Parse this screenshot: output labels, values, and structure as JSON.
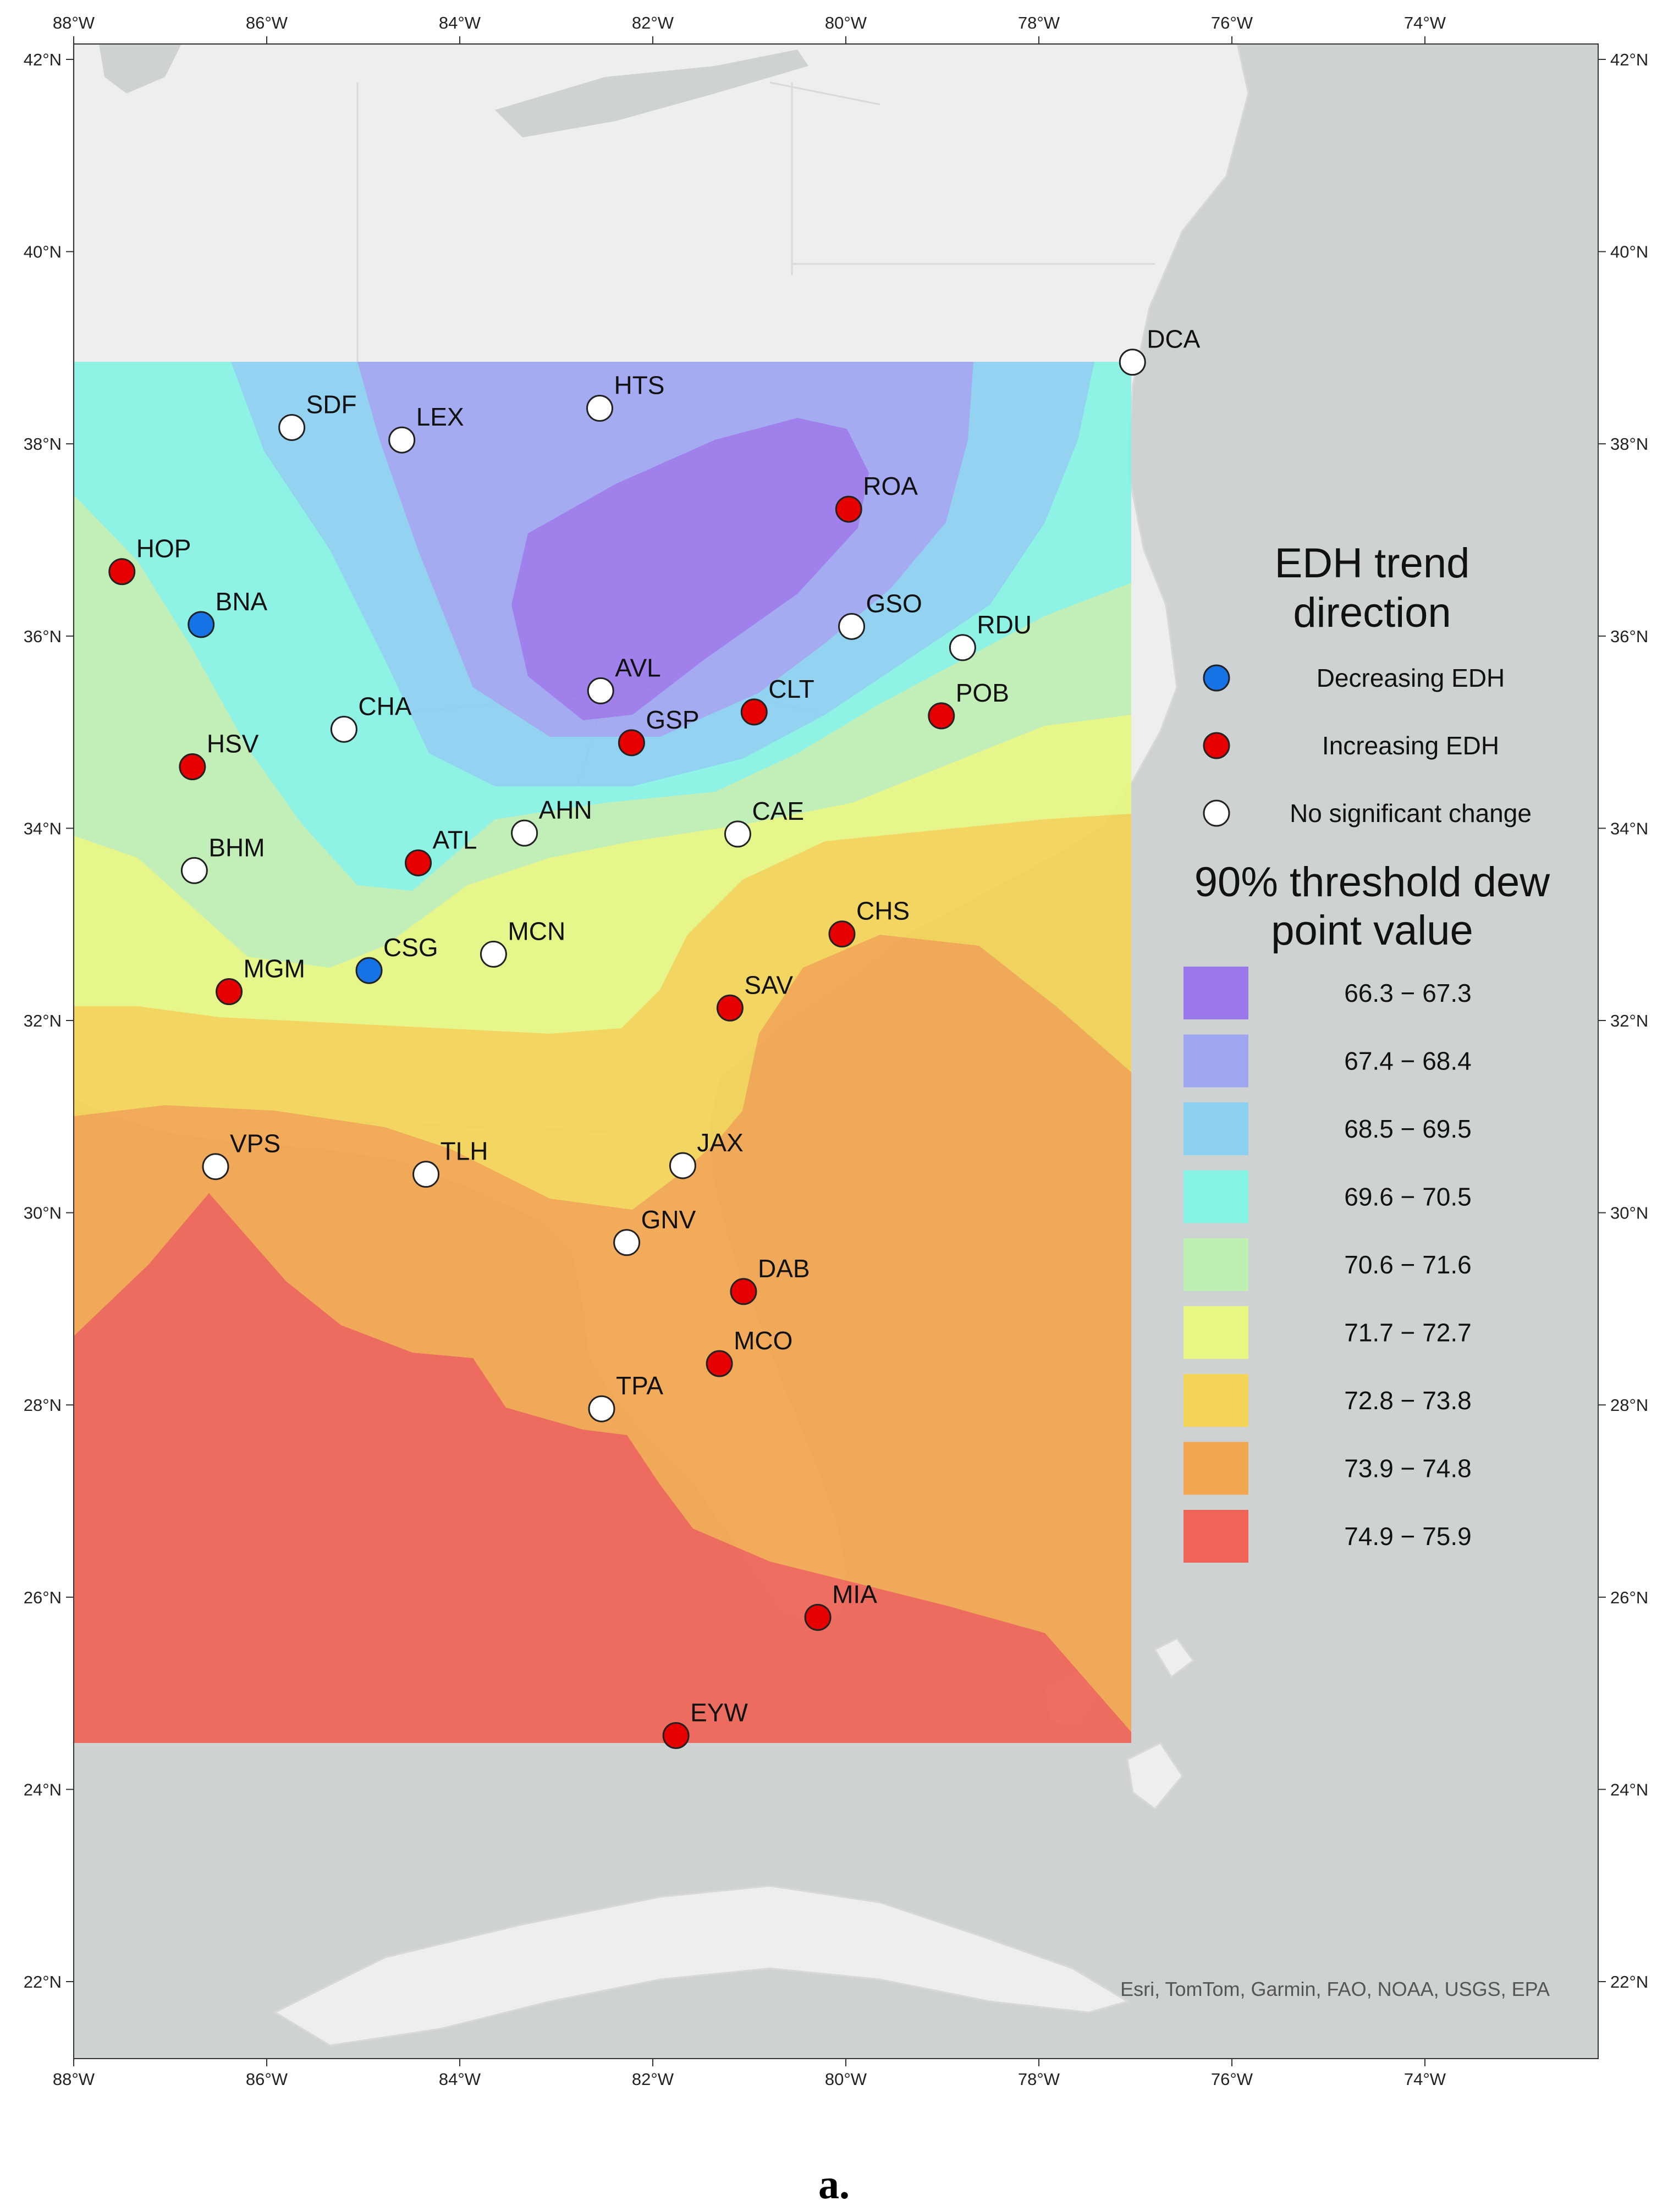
{
  "colors": {
    "water": "#cfd2d3",
    "land": "#eeeeee",
    "border": "#d6d6d6",
    "decreasing": "#1573e6",
    "increasing": "#e60000",
    "no_change": "#ffffff"
  },
  "axes": {
    "lon_ticks": [
      "88°W",
      "86°W",
      "84°W",
      "82°W",
      "80°W",
      "78°W",
      "76°W",
      "74°W"
    ],
    "lat_ticks": [
      "42°N",
      "40°N",
      "38°N",
      "36°N",
      "34°N",
      "32°N",
      "30°N",
      "28°N",
      "26°N",
      "24°N",
      "22°N"
    ]
  },
  "legend": {
    "trend_title_line1": "EDH trend",
    "trend_title_line2": "direction",
    "trend_items": [
      {
        "label": "Decreasing EDH",
        "symbol": "decreasing"
      },
      {
        "label": "Increasing EDH",
        "symbol": "increasing"
      },
      {
        "label": "No significant change",
        "symbol": "no_change"
      }
    ],
    "threshold_title_line1": "90% threshold dew",
    "threshold_title_line2": "point value",
    "classes": [
      {
        "label": "66.3 − 67.3",
        "color": "#9a78ec"
      },
      {
        "label": "67.4 − 68.4",
        "color": "#9fa6f1"
      },
      {
        "label": "68.5 − 69.5",
        "color": "#8cd0f2"
      },
      {
        "label": "69.6 − 70.5",
        "color": "#86f3e4"
      },
      {
        "label": "70.6 − 71.6",
        "color": "#bff0b3"
      },
      {
        "label": "71.7 − 72.7",
        "color": "#e7f782"
      },
      {
        "label": "72.8 − 73.8",
        "color": "#f3d456"
      },
      {
        "label": "73.9 − 74.8",
        "color": "#f2a64f"
      },
      {
        "label": "74.9 − 75.9",
        "color": "#ef6456"
      }
    ]
  },
  "stations": [
    {
      "code": "DCA",
      "lon": -77.03,
      "lat": 38.85,
      "trend": "no_change"
    },
    {
      "code": "HTS",
      "lon": -82.55,
      "lat": 38.37,
      "trend": "no_change"
    },
    {
      "code": "SDF",
      "lon": -85.74,
      "lat": 38.17,
      "trend": "no_change"
    },
    {
      "code": "LEX",
      "lon": -84.6,
      "lat": 38.04,
      "trend": "no_change"
    },
    {
      "code": "ROA",
      "lon": -79.97,
      "lat": 37.32,
      "trend": "increasing"
    },
    {
      "code": "HOP",
      "lon": -87.5,
      "lat": 36.67,
      "trend": "increasing"
    },
    {
      "code": "BNA",
      "lon": -86.68,
      "lat": 36.12,
      "trend": "decreasing"
    },
    {
      "code": "GSO",
      "lon": -79.94,
      "lat": 36.1,
      "trend": "no_change"
    },
    {
      "code": "RDU",
      "lon": -78.79,
      "lat": 35.88,
      "trend": "no_change"
    },
    {
      "code": "AVL",
      "lon": -82.54,
      "lat": 35.43,
      "trend": "no_change"
    },
    {
      "code": "CLT",
      "lon": -80.95,
      "lat": 35.21,
      "trend": "increasing"
    },
    {
      "code": "POB",
      "lon": -79.01,
      "lat": 35.17,
      "trend": "increasing"
    },
    {
      "code": "CHA",
      "lon": -85.2,
      "lat": 35.03,
      "trend": "no_change"
    },
    {
      "code": "GSP",
      "lon": -82.22,
      "lat": 34.89,
      "trend": "increasing"
    },
    {
      "code": "HSV",
      "lon": -86.77,
      "lat": 34.64,
      "trend": "increasing"
    },
    {
      "code": "AHN",
      "lon": -83.33,
      "lat": 33.95,
      "trend": "no_change"
    },
    {
      "code": "CAE",
      "lon": -81.12,
      "lat": 33.94,
      "trend": "no_change"
    },
    {
      "code": "ATL",
      "lon": -84.43,
      "lat": 33.64,
      "trend": "increasing"
    },
    {
      "code": "BHM",
      "lon": -86.75,
      "lat": 33.56,
      "trend": "no_change"
    },
    {
      "code": "CHS",
      "lon": -80.04,
      "lat": 32.9,
      "trend": "increasing"
    },
    {
      "code": "MCN",
      "lon": -83.65,
      "lat": 32.69,
      "trend": "no_change"
    },
    {
      "code": "CSG",
      "lon": -84.94,
      "lat": 32.52,
      "trend": "decreasing"
    },
    {
      "code": "MGM",
      "lon": -86.39,
      "lat": 32.3,
      "trend": "increasing"
    },
    {
      "code": "SAV",
      "lon": -81.2,
      "lat": 32.13,
      "trend": "increasing"
    },
    {
      "code": "VPS",
      "lon": -86.53,
      "lat": 30.48,
      "trend": "no_change"
    },
    {
      "code": "JAX",
      "lon": -81.69,
      "lat": 30.49,
      "trend": "no_change"
    },
    {
      "code": "TLH",
      "lon": -84.35,
      "lat": 30.4,
      "trend": "no_change"
    },
    {
      "code": "GNV",
      "lon": -82.27,
      "lat": 29.69,
      "trend": "no_change"
    },
    {
      "code": "DAB",
      "lon": -81.06,
      "lat": 29.18,
      "trend": "increasing"
    },
    {
      "code": "MCO",
      "lon": -81.31,
      "lat": 28.43,
      "trend": "increasing"
    },
    {
      "code": "TPA",
      "lon": -82.53,
      "lat": 27.96,
      "trend": "no_change"
    },
    {
      "code": "MIA",
      "lon": -80.29,
      "lat": 25.79,
      "trend": "increasing"
    },
    {
      "code": "EYW",
      "lon": -81.76,
      "lat": 24.56,
      "trend": "increasing"
    }
  ],
  "attribution": "Esri, TomTom, Garmin, FAO, NOAA, USGS, EPA",
  "caption": "a."
}
